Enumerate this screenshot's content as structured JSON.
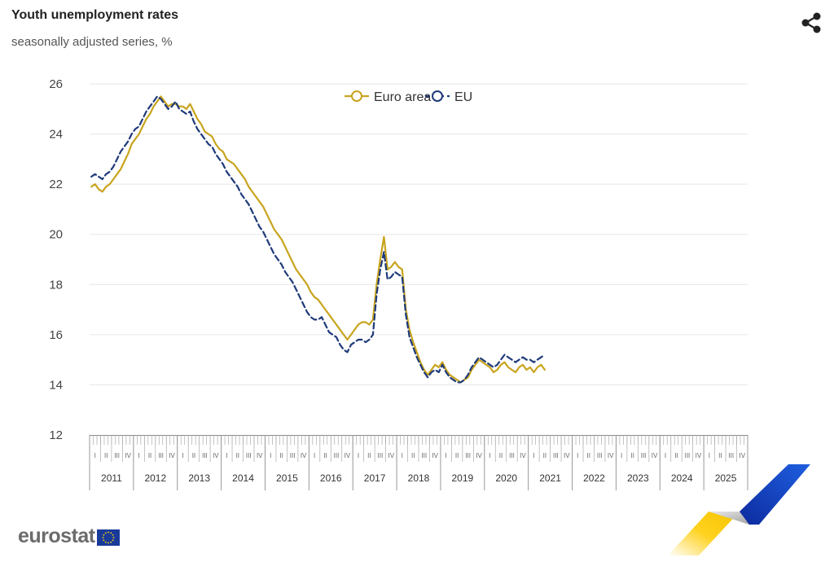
{
  "header": {
    "title": "Youth unemployment rates",
    "subtitle": "seasonally adjusted series, %",
    "share_icon": "share-icon"
  },
  "logo": {
    "text": "eurostat",
    "flag_icon": "eu-flag-icon"
  },
  "colors": {
    "euro_area": "#c8a41e",
    "eu": "#1f3a7a",
    "grid": "#e6e6e6",
    "axis": "#888888"
  },
  "chart_data": {
    "type": "line",
    "ylim": [
      12,
      26
    ],
    "yticks": [
      12,
      14,
      16,
      18,
      20,
      22,
      24,
      26
    ],
    "grid": true,
    "legend": "top-center",
    "x_start_month": "2011-01",
    "years": [
      "2011",
      "2012",
      "2013",
      "2014",
      "2015",
      "2016",
      "2017",
      "2018",
      "2019",
      "2020",
      "2021",
      "2022",
      "2023",
      "2024",
      "2025"
    ],
    "quarters": [
      "I",
      "II",
      "III",
      "IV"
    ],
    "series": [
      {
        "name": "Euro area",
        "style": "solid",
        "values": [
          21.9,
          22.0,
          21.8,
          21.7,
          21.9,
          22.0,
          22.2,
          22.4,
          22.6,
          22.9,
          23.2,
          23.6,
          23.8,
          24.0,
          24.3,
          24.6,
          24.8,
          25.1,
          25.3,
          25.5,
          25.3,
          25.1,
          25.2,
          25.2,
          25.1,
          25.1,
          25.0,
          25.2,
          24.9,
          24.6,
          24.4,
          24.1,
          24.0,
          23.9,
          23.6,
          23.4,
          23.3,
          23.0,
          22.9,
          22.8,
          22.6,
          22.4,
          22.2,
          21.9,
          21.7,
          21.5,
          21.3,
          21.1,
          20.8,
          20.5,
          20.2,
          20.0,
          19.8,
          19.5,
          19.2,
          18.9,
          18.6,
          18.4,
          18.2,
          18.0,
          17.7,
          17.5,
          17.4,
          17.2,
          17.0,
          16.8,
          16.6,
          16.4,
          16.2,
          16.0,
          15.8,
          16.0,
          16.2,
          16.4,
          16.5,
          16.5,
          16.4,
          16.6,
          18.0,
          19.0,
          19.9,
          18.6,
          18.7,
          18.9,
          18.7,
          18.6,
          17.0,
          16.2,
          15.7,
          15.3,
          14.9,
          14.6,
          14.4,
          14.6,
          14.8,
          14.7,
          14.9,
          14.6,
          14.4,
          14.3,
          14.2,
          14.1,
          14.2,
          14.3,
          14.6,
          14.8,
          15.0,
          14.9,
          14.8,
          14.7,
          14.5,
          14.6,
          14.8,
          14.9,
          14.7,
          14.6,
          14.5,
          14.7,
          14.8,
          14.6,
          14.7,
          14.5,
          14.7,
          14.8,
          14.6
        ]
      },
      {
        "name": "EU",
        "style": "dashed",
        "values": [
          22.3,
          22.4,
          22.3,
          22.2,
          22.4,
          22.5,
          22.7,
          23.0,
          23.3,
          23.5,
          23.7,
          24.0,
          24.2,
          24.3,
          24.6,
          24.9,
          25.1,
          25.3,
          25.5,
          25.4,
          25.2,
          25.0,
          25.1,
          25.3,
          25.0,
          24.9,
          24.8,
          24.9,
          24.5,
          24.2,
          24.0,
          23.8,
          23.6,
          23.5,
          23.2,
          23.0,
          22.8,
          22.5,
          22.3,
          22.1,
          21.9,
          21.6,
          21.4,
          21.2,
          20.9,
          20.6,
          20.3,
          20.1,
          19.8,
          19.5,
          19.2,
          19.0,
          18.8,
          18.5,
          18.3,
          18.1,
          17.8,
          17.5,
          17.2,
          16.9,
          16.7,
          16.6,
          16.6,
          16.7,
          16.4,
          16.1,
          16.0,
          15.9,
          15.6,
          15.4,
          15.3,
          15.6,
          15.7,
          15.8,
          15.8,
          15.7,
          15.8,
          16.0,
          17.6,
          18.6,
          19.3,
          18.2,
          18.3,
          18.5,
          18.4,
          18.3,
          16.8,
          15.9,
          15.5,
          15.1,
          14.8,
          14.5,
          14.3,
          14.5,
          14.6,
          14.5,
          14.8,
          14.5,
          14.3,
          14.2,
          14.1,
          14.1,
          14.2,
          14.4,
          14.7,
          14.9,
          15.1,
          15.0,
          14.9,
          14.8,
          14.7,
          14.8,
          15.0,
          15.2,
          15.1,
          15.0,
          14.9,
          15.0,
          15.1,
          15.0,
          15.0,
          14.9,
          15.0,
          15.1,
          15.2
        ]
      }
    ]
  }
}
